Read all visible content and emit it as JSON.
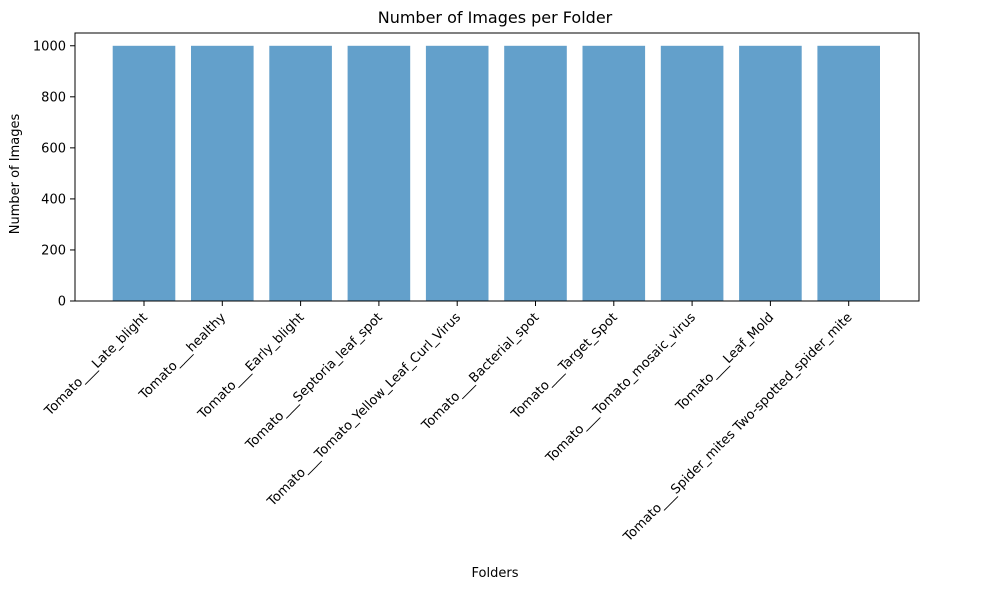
{
  "chart_data": {
    "type": "bar",
    "title": "Number of Images per Folder",
    "xlabel": "Folders",
    "ylabel": "Number of Images",
    "categories": [
      "Tomato___Late_blight",
      "Tomato___healthy",
      "Tomato___Early_blight",
      "Tomato___Septoria_leaf_spot",
      "Tomato___Tomato_Yellow_Leaf_Curl_Virus",
      "Tomato___Bacterial_spot",
      "Tomato___Target_Spot",
      "Tomato___Tomato_mosaic_virus",
      "Tomato___Leaf_Mold",
      "Tomato___Spider_mites Two-spotted_spider_mite"
    ],
    "values": [
      1000,
      1000,
      1000,
      1000,
      1000,
      1000,
      1000,
      1000,
      1000,
      1000
    ],
    "ylim": [
      0,
      1000
    ],
    "yticks": [
      0,
      200,
      400,
      600,
      800,
      1000
    ],
    "x_tick_rotation_deg": 45,
    "bar_color": "#63a0cb",
    "grid": false,
    "legend": "none"
  }
}
